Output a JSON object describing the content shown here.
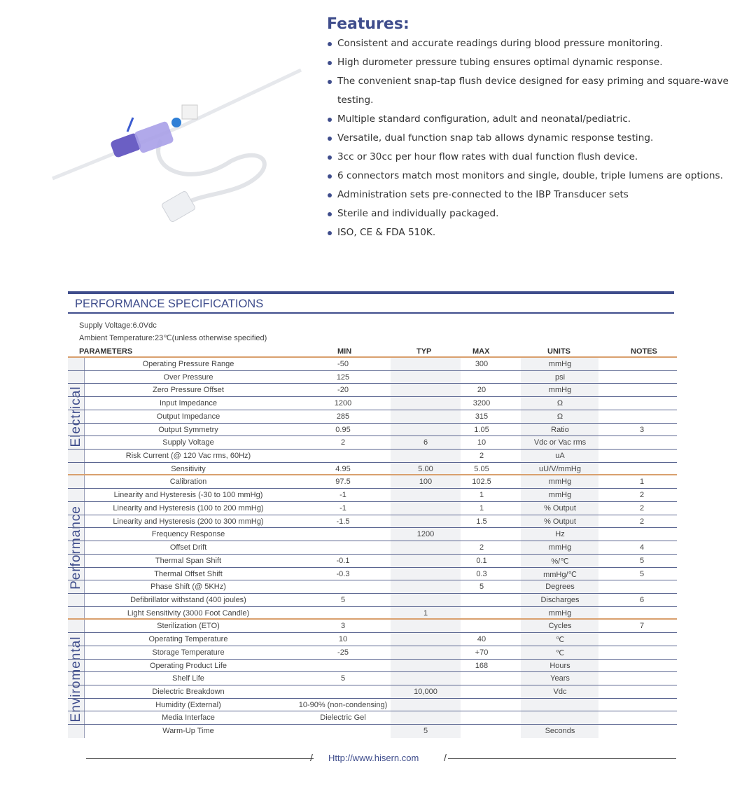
{
  "features": {
    "title": "Features:",
    "items": [
      "Consistent and accurate readings during blood pressure monitoring.",
      "High durometer pressure tubing ensures optimal dynamic response.",
      "The convenient snap-tap flush device designed for easy priming and square-wave testing.",
      "Multiple standard configuration, adult and neonatal/pediatric.",
      "Versatile, dual function snap tab allows dynamic response testing.",
      "3cc or 30cc per hour flow rates with dual function flush device.",
      "6 connectors match most monitors and single, double, triple lumens are options.",
      "Administration sets pre-connected to the IBP Transducer sets",
      "Sterile and individually packaged.",
      "ISO, CE & FDA 510K."
    ]
  },
  "spec": {
    "title": "PERFORMANCE SPECIFICATIONS",
    "supply": "Supply Voltage:6.0Vdc",
    "ambient": "Ambient Temperature:23℃(unless otherwise specified)",
    "headers": [
      "PARAMETERS",
      "MIN",
      "TYP",
      "MAX",
      "UNITS",
      "NOTES"
    ],
    "groups": [
      {
        "name": "Electrical",
        "rows": [
          [
            "Operating Pressure Range",
            "-50",
            "",
            "300",
            "mmHg",
            ""
          ],
          [
            "Over  Pressure",
            "125",
            "",
            "",
            "psi",
            ""
          ],
          [
            "Zero Pressure Offset",
            "-20",
            "",
            "20",
            "mmHg",
            ""
          ],
          [
            "Input Impedance",
            "1200",
            "",
            "3200",
            "Ω",
            ""
          ],
          [
            "Output Impedance",
            "285",
            "",
            "315",
            "Ω",
            ""
          ],
          [
            "Output Symmetry",
            "0.95",
            "",
            "1.05",
            "Ratio",
            "3"
          ],
          [
            "Supply Voltage",
            "2",
            "6",
            "10",
            "Vdc or Vac rms",
            ""
          ],
          [
            "Risk Current (@ 120 Vac rms, 60Hz)",
            "",
            "",
            "2",
            "uA",
            ""
          ],
          [
            "Sensitivity",
            "4.95",
            "5.00",
            "5.05",
            "uU/V/mmHg",
            ""
          ]
        ]
      },
      {
        "name": "Performance",
        "rows": [
          [
            "Calibration",
            "97.5",
            "100",
            "102.5",
            "mmHg",
            "1"
          ],
          [
            "Linearity and Hysteresis (-30 to 100 mmHg)",
            "-1",
            "",
            "1",
            "mmHg",
            "2"
          ],
          [
            "Linearity and Hysteresis (100 to 200 mmHg)",
            "-1",
            "",
            "1",
            "% Output",
            "2"
          ],
          [
            "Linearity and Hysteresis (200 to 300 mmHg)",
            "-1.5",
            "",
            "1.5",
            "% Output",
            "2"
          ],
          [
            "Frequency Response",
            "",
            "1200",
            "",
            "Hz",
            ""
          ],
          [
            "Offset Drift",
            "",
            "",
            "2",
            "mmHg",
            "4"
          ],
          [
            "Thermal Span Shift",
            "-0.1",
            "",
            "0.1",
            "%/℃",
            "5"
          ],
          [
            "Thermal Offset Shift",
            "-0.3",
            "",
            "0.3",
            "mmHg/℃",
            "5"
          ],
          [
            "Phase Shift (@ 5KHz)",
            "",
            "",
            "5",
            "Degrees",
            ""
          ],
          [
            "Defibrillator withstand (400 joules)",
            "5",
            "",
            "",
            "Discharges",
            "6"
          ],
          [
            "Light Sensitivity (3000 Foot Candle)",
            "",
            "1",
            "",
            "mmHg",
            ""
          ]
        ]
      },
      {
        "name": "Enviromental",
        "rows": [
          [
            "Sterilization (ETO)",
            "3",
            "",
            "",
            "Cycles",
            "7"
          ],
          [
            "Operating Temperature",
            "10",
            "",
            "40",
            "℃",
            ""
          ],
          [
            "Storage Temperature",
            "-25",
            "",
            "+70",
            "℃",
            ""
          ],
          [
            "Operating Product Life",
            "",
            "",
            "168",
            "Hours",
            ""
          ],
          [
            "Shelf Life",
            "5",
            "",
            "",
            "Years",
            ""
          ],
          [
            "Dielectric Breakdown",
            "",
            "10,000",
            "",
            "Vdc",
            ""
          ],
          [
            "Humidity (External)",
            "10-90% (non-condensing)",
            "",
            "",
            "",
            ""
          ],
          [
            "Media Interface",
            "Dielectric Gel",
            "",
            "",
            "",
            ""
          ],
          [
            "Warm-Up Time",
            "",
            "5",
            "",
            "Seconds",
            ""
          ]
        ]
      }
    ]
  },
  "footer": {
    "url": "Http://www.hisern.com"
  }
}
